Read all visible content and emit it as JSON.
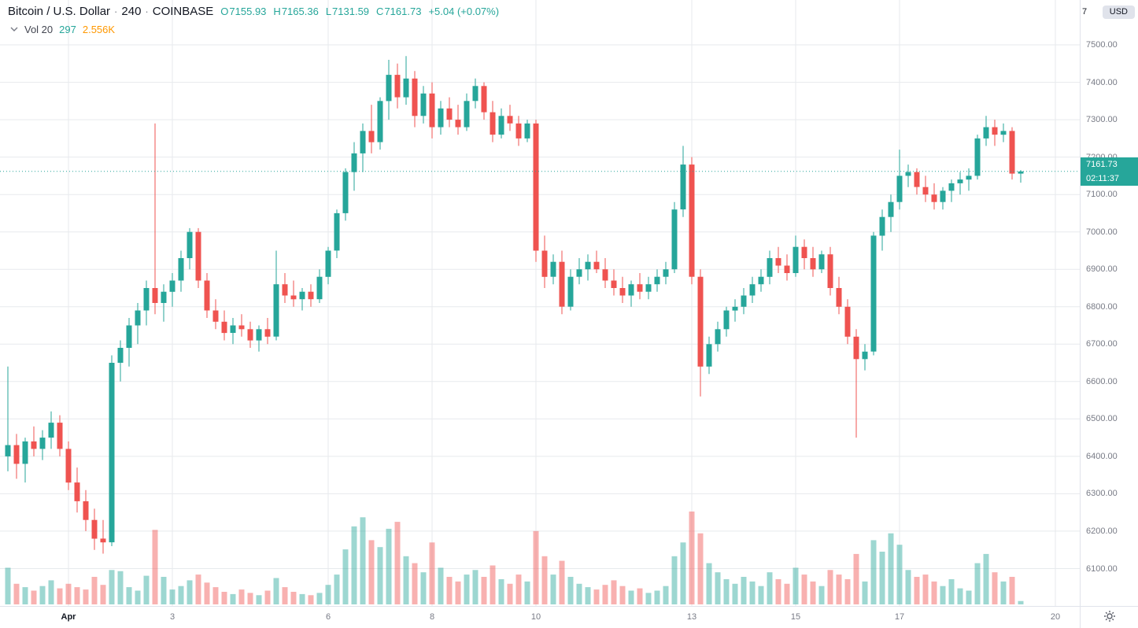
{
  "header": {
    "symbol_title": "Bitcoin / U.S. Dollar",
    "separator": "·",
    "interval": "240",
    "exchange": "COINBASE",
    "ohlc": {
      "o_label": "O",
      "o": "7155.93",
      "h_label": "H",
      "h": "7165.36",
      "l_label": "L",
      "l": "7131.59",
      "c_label": "C",
      "c": "7161.73",
      "change": "+5.04 (+0.07%)"
    }
  },
  "indicator": {
    "label": "Vol 20",
    "value": "297",
    "ma_value": "2.556K"
  },
  "price_axis": {
    "top_digit": "7",
    "currency_label": "USD",
    "ticks": [
      "7500.00",
      "7400.00",
      "7300.00",
      "7200.00",
      "7100.00",
      "7000.00",
      "6900.00",
      "6800.00",
      "6700.00",
      "6600.00",
      "6500.00",
      "6400.00",
      "6300.00",
      "6200.00",
      "6100.00"
    ],
    "last_price_label": "7161.73",
    "countdown": "02:11:37"
  },
  "time_axis": {
    "ticks": [
      {
        "label": "Apr",
        "index": 7,
        "emphasis": true
      },
      {
        "label": "3",
        "index": 19,
        "emphasis": false
      },
      {
        "label": "6",
        "index": 37,
        "emphasis": false
      },
      {
        "label": "8",
        "index": 49,
        "emphasis": false
      },
      {
        "label": "10",
        "index": 61,
        "emphasis": false
      },
      {
        "label": "13",
        "index": 79,
        "emphasis": false
      },
      {
        "label": "15",
        "index": 91,
        "emphasis": false
      },
      {
        "label": "17",
        "index": 103,
        "emphasis": false
      },
      {
        "label": "20",
        "index": 121,
        "emphasis": false
      }
    ]
  },
  "colors": {
    "up": "#26a69a",
    "down": "#ef5350",
    "vol_up": "rgba(38,166,154,0.45)",
    "vol_down": "rgba(239,83,80,0.45)",
    "grid": "#e7eaed",
    "axis_text": "#787b86",
    "title_text": "#131722",
    "badge_bg": "#26a69a",
    "badge_text": "#ffffff",
    "ma_orange": "#ff9800",
    "usd_pill_bg": "#e0e3eb"
  },
  "chart_data": {
    "type": "candlestick+volume",
    "title": "Bitcoin / U.S. Dollar",
    "exchange": "COINBASE",
    "interval_minutes": 240,
    "legend_ohlc": {
      "open": 7155.93,
      "high": 7165.36,
      "low": 7131.59,
      "close": 7161.73,
      "change": 5.04,
      "change_pct": 0.07
    },
    "last_close": 7161.73,
    "visible_price_range": [
      6000,
      7620
    ],
    "price_gridlines": [
      7500,
      7400,
      7300,
      7200,
      7100,
      7000,
      6900,
      6800,
      6700,
      6600,
      6500,
      6400,
      6300,
      6200,
      6100
    ],
    "x_axis_days": [
      "Apr",
      "3",
      "6",
      "8",
      "10",
      "13",
      "15",
      "17",
      "20"
    ],
    "volume_current": 297,
    "volume_ma20": 2556,
    "candles_ohlc": [
      [
        6400,
        6640,
        6360,
        6430
      ],
      [
        6430,
        6460,
        6340,
        6380
      ],
      [
        6380,
        6450,
        6330,
        6440
      ],
      [
        6440,
        6480,
        6400,
        6420
      ],
      [
        6420,
        6470,
        6390,
        6450
      ],
      [
        6450,
        6520,
        6420,
        6490
      ],
      [
        6490,
        6510,
        6400,
        6420
      ],
      [
        6420,
        6440,
        6310,
        6330
      ],
      [
        6330,
        6370,
        6250,
        6280
      ],
      [
        6280,
        6310,
        6200,
        6230
      ],
      [
        6230,
        6260,
        6150,
        6180
      ],
      [
        6180,
        6230,
        6140,
        6170
      ],
      [
        6170,
        6670,
        6160,
        6650
      ],
      [
        6650,
        6710,
        6600,
        6690
      ],
      [
        6690,
        6770,
        6640,
        6750
      ],
      [
        6750,
        6810,
        6700,
        6790
      ],
      [
        6790,
        6870,
        6750,
        6850
      ],
      [
        6850,
        7290,
        6780,
        6810
      ],
      [
        6810,
        6860,
        6760,
        6840
      ],
      [
        6840,
        6890,
        6800,
        6870
      ],
      [
        6870,
        6950,
        6840,
        6930
      ],
      [
        6930,
        7010,
        6900,
        7000
      ],
      [
        7000,
        7010,
        6850,
        6870
      ],
      [
        6870,
        6890,
        6770,
        6790
      ],
      [
        6790,
        6820,
        6740,
        6760
      ],
      [
        6760,
        6790,
        6710,
        6730
      ],
      [
        6730,
        6770,
        6700,
        6750
      ],
      [
        6750,
        6780,
        6720,
        6740
      ],
      [
        6740,
        6760,
        6690,
        6710
      ],
      [
        6710,
        6750,
        6680,
        6740
      ],
      [
        6740,
        6770,
        6700,
        6720
      ],
      [
        6720,
        6950,
        6710,
        6860
      ],
      [
        6860,
        6890,
        6810,
        6830
      ],
      [
        6830,
        6870,
        6800,
        6820
      ],
      [
        6820,
        6850,
        6790,
        6840
      ],
      [
        6840,
        6860,
        6800,
        6820
      ],
      [
        6820,
        6900,
        6810,
        6880
      ],
      [
        6880,
        6960,
        6860,
        6950
      ],
      [
        6950,
        7060,
        6930,
        7050
      ],
      [
        7050,
        7170,
        7030,
        7160
      ],
      [
        7160,
        7240,
        7110,
        7210
      ],
      [
        7210,
        7290,
        7160,
        7270
      ],
      [
        7270,
        7340,
        7210,
        7240
      ],
      [
        7240,
        7360,
        7220,
        7350
      ],
      [
        7350,
        7460,
        7300,
        7420
      ],
      [
        7420,
        7450,
        7330,
        7360
      ],
      [
        7360,
        7470,
        7340,
        7410
      ],
      [
        7410,
        7430,
        7280,
        7310
      ],
      [
        7310,
        7390,
        7290,
        7370
      ],
      [
        7370,
        7400,
        7250,
        7280
      ],
      [
        7280,
        7350,
        7260,
        7330
      ],
      [
        7330,
        7360,
        7280,
        7300
      ],
      [
        7300,
        7340,
        7260,
        7280
      ],
      [
        7280,
        7370,
        7270,
        7350
      ],
      [
        7350,
        7410,
        7330,
        7390
      ],
      [
        7390,
        7400,
        7300,
        7320
      ],
      [
        7320,
        7350,
        7240,
        7260
      ],
      [
        7260,
        7330,
        7250,
        7310
      ],
      [
        7310,
        7340,
        7270,
        7290
      ],
      [
        7290,
        7310,
        7230,
        7250
      ],
      [
        7250,
        7300,
        7240,
        7290
      ],
      [
        7290,
        7300,
        6920,
        6950
      ],
      [
        6950,
        6990,
        6850,
        6880
      ],
      [
        6880,
        6940,
        6860,
        6920
      ],
      [
        6920,
        6950,
        6780,
        6800
      ],
      [
        6800,
        6900,
        6790,
        6880
      ],
      [
        6880,
        6930,
        6860,
        6900
      ],
      [
        6900,
        6940,
        6870,
        6920
      ],
      [
        6920,
        6950,
        6890,
        6900
      ],
      [
        6900,
        6930,
        6850,
        6870
      ],
      [
        6870,
        6900,
        6830,
        6850
      ],
      [
        6850,
        6880,
        6810,
        6830
      ],
      [
        6830,
        6870,
        6800,
        6860
      ],
      [
        6860,
        6890,
        6820,
        6840
      ],
      [
        6840,
        6880,
        6820,
        6860
      ],
      [
        6860,
        6900,
        6840,
        6880
      ],
      [
        6880,
        6920,
        6860,
        6900
      ],
      [
        6900,
        7080,
        6890,
        7060
      ],
      [
        7060,
        7230,
        7040,
        7180
      ],
      [
        7180,
        7200,
        6860,
        6880
      ],
      [
        6880,
        6900,
        6560,
        6640
      ],
      [
        6640,
        6720,
        6620,
        6700
      ],
      [
        6700,
        6760,
        6680,
        6740
      ],
      [
        6740,
        6800,
        6720,
        6790
      ],
      [
        6790,
        6820,
        6760,
        6800
      ],
      [
        6800,
        6850,
        6780,
        6830
      ],
      [
        6830,
        6880,
        6810,
        6860
      ],
      [
        6860,
        6900,
        6840,
        6880
      ],
      [
        6880,
        6950,
        6860,
        6930
      ],
      [
        6930,
        6960,
        6890,
        6910
      ],
      [
        6910,
        6940,
        6870,
        6890
      ],
      [
        6890,
        6990,
        6880,
        6960
      ],
      [
        6960,
        6980,
        6900,
        6930
      ],
      [
        6930,
        6960,
        6880,
        6900
      ],
      [
        6900,
        6950,
        6890,
        6940
      ],
      [
        6940,
        6960,
        6830,
        6850
      ],
      [
        6850,
        6880,
        6780,
        6800
      ],
      [
        6800,
        6820,
        6700,
        6720
      ],
      [
        6720,
        6740,
        6450,
        6660
      ],
      [
        6660,
        6700,
        6630,
        6680
      ],
      [
        6680,
        7000,
        6670,
        6990
      ],
      [
        6990,
        7060,
        6950,
        7040
      ],
      [
        7040,
        7100,
        7000,
        7080
      ],
      [
        7080,
        7220,
        7060,
        7150
      ],
      [
        7150,
        7180,
        7120,
        7160
      ],
      [
        7160,
        7170,
        7100,
        7120
      ],
      [
        7120,
        7150,
        7080,
        7100
      ],
      [
        7100,
        7130,
        7060,
        7080
      ],
      [
        7080,
        7120,
        7060,
        7110
      ],
      [
        7110,
        7140,
        7080,
        7130
      ],
      [
        7130,
        7160,
        7100,
        7140
      ],
      [
        7140,
        7170,
        7110,
        7150
      ],
      [
        7150,
        7260,
        7140,
        7250
      ],
      [
        7250,
        7310,
        7230,
        7280
      ],
      [
        7280,
        7300,
        7230,
        7260
      ],
      [
        7260,
        7290,
        7240,
        7270
      ],
      [
        7270,
        7280,
        7140,
        7156
      ],
      [
        7155.93,
        7165.36,
        7131.59,
        7161.73
      ]
    ],
    "volumes": [
      3200,
      1800,
      1500,
      1200,
      1600,
      2100,
      1400,
      1800,
      1500,
      1300,
      2400,
      1700,
      3000,
      2900,
      1500,
      1200,
      2500,
      6500,
      2400,
      1300,
      1600,
      2100,
      2600,
      1900,
      1500,
      1100,
      900,
      1300,
      1000,
      800,
      1200,
      2300,
      1500,
      1100,
      900,
      800,
      1000,
      1700,
      2600,
      4800,
      6800,
      7600,
      5600,
      5000,
      6600,
      7200,
      4200,
      3600,
      2800,
      5400,
      3200,
      2400,
      2000,
      2600,
      3000,
      2400,
      3400,
      2200,
      1800,
      2600,
      2000,
      6400,
      4200,
      2600,
      3800,
      2400,
      1800,
      1500,
      1300,
      1700,
      2100,
      1600,
      1200,
      1400,
      1000,
      1200,
      1600,
      4200,
      5400,
      8100,
      6200,
      3600,
      2800,
      2200,
      1800,
      2400,
      2000,
      1600,
      2800,
      2200,
      1800,
      3200,
      2600,
      2000,
      1600,
      3000,
      2600,
      2200,
      4400,
      2000,
      5600,
      4600,
      6200,
      5200,
      3000,
      2400,
      2600,
      2000,
      1600,
      2200,
      1400,
      1200,
      3600,
      4400,
      2800,
      2000,
      2400,
      297
    ]
  }
}
